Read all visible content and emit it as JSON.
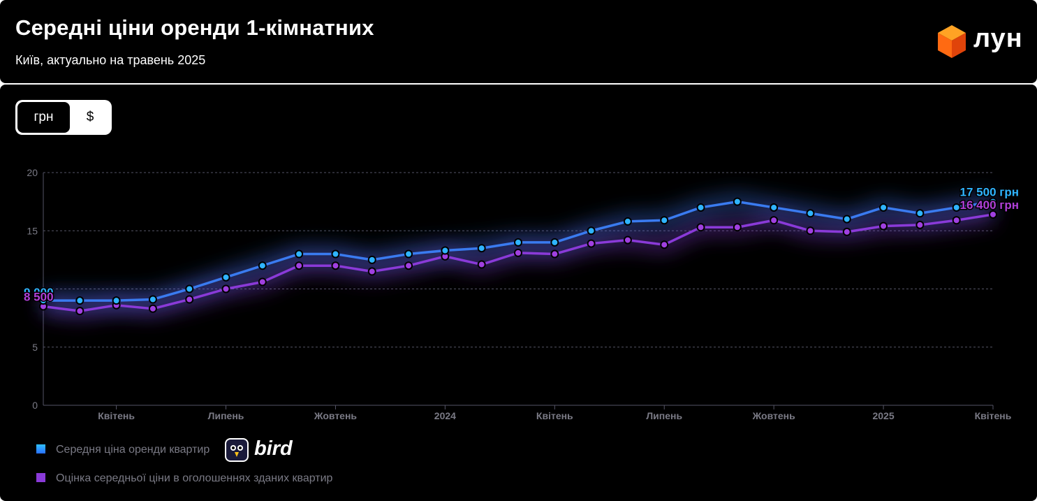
{
  "header": {
    "title": "Середні ціни оренди 1-кімнатних",
    "subtitle": "Київ, актуально на травень 2025",
    "logo_text": "лун"
  },
  "toggle": {
    "options": [
      "грн",
      "$"
    ],
    "selected": "грн"
  },
  "colors": {
    "series_1": "#3a7bf0",
    "series_1_marker": "#2fb4ff",
    "series_2": "#8a3ad8",
    "series_2_marker": "#a040e0",
    "label_1": "#2fb4ff",
    "label_2": "#b040d8",
    "grid": "#555566",
    "axis_text": "#7a7a85"
  },
  "chart_data": {
    "type": "line",
    "ylim": [
      0,
      20
    ],
    "yticks": [
      0,
      5,
      15,
      20
    ],
    "xtick_labels": [
      "Квітень",
      "Липень",
      "Жовтень",
      "2024",
      "Квітень",
      "Липень",
      "Жовтень",
      "2025",
      "Квітень"
    ],
    "grid": true,
    "series": [
      {
        "name": "Середня ціна оренди квартир",
        "values": [
          9.0,
          9.0,
          9.0,
          9.1,
          10.0,
          11.0,
          12.0,
          13.0,
          13.0,
          12.5,
          13.0,
          13.3,
          13.5,
          14.0,
          14.0,
          15.0,
          15.8,
          15.9,
          17.0,
          17.5,
          17.0,
          16.5,
          16.0,
          17.0,
          16.5,
          17.0,
          17.5
        ],
        "start_label": "9 000",
        "end_label": "17 500 грн"
      },
      {
        "name": "Оцінка середньої ціни в оголошеннях зданих квартир",
        "values": [
          8.5,
          8.1,
          8.6,
          8.3,
          9.1,
          10.0,
          10.6,
          12.0,
          12.0,
          11.5,
          12.0,
          12.8,
          12.1,
          13.1,
          13.0,
          13.9,
          14.2,
          13.8,
          15.3,
          15.3,
          15.9,
          15.0,
          14.9,
          15.4,
          15.5,
          15.9,
          16.4
        ],
        "start_label": "8 500",
        "end_label": "16 400 грн"
      }
    ]
  },
  "legend": {
    "items": [
      {
        "label": "Середня ціна оренди квартир",
        "color": "#2fa8ff"
      },
      {
        "label": "Оцінка середньої ціни в оголошеннях зданих квартир",
        "color": "#8a3ad8"
      }
    ],
    "sponsor": "bird"
  }
}
